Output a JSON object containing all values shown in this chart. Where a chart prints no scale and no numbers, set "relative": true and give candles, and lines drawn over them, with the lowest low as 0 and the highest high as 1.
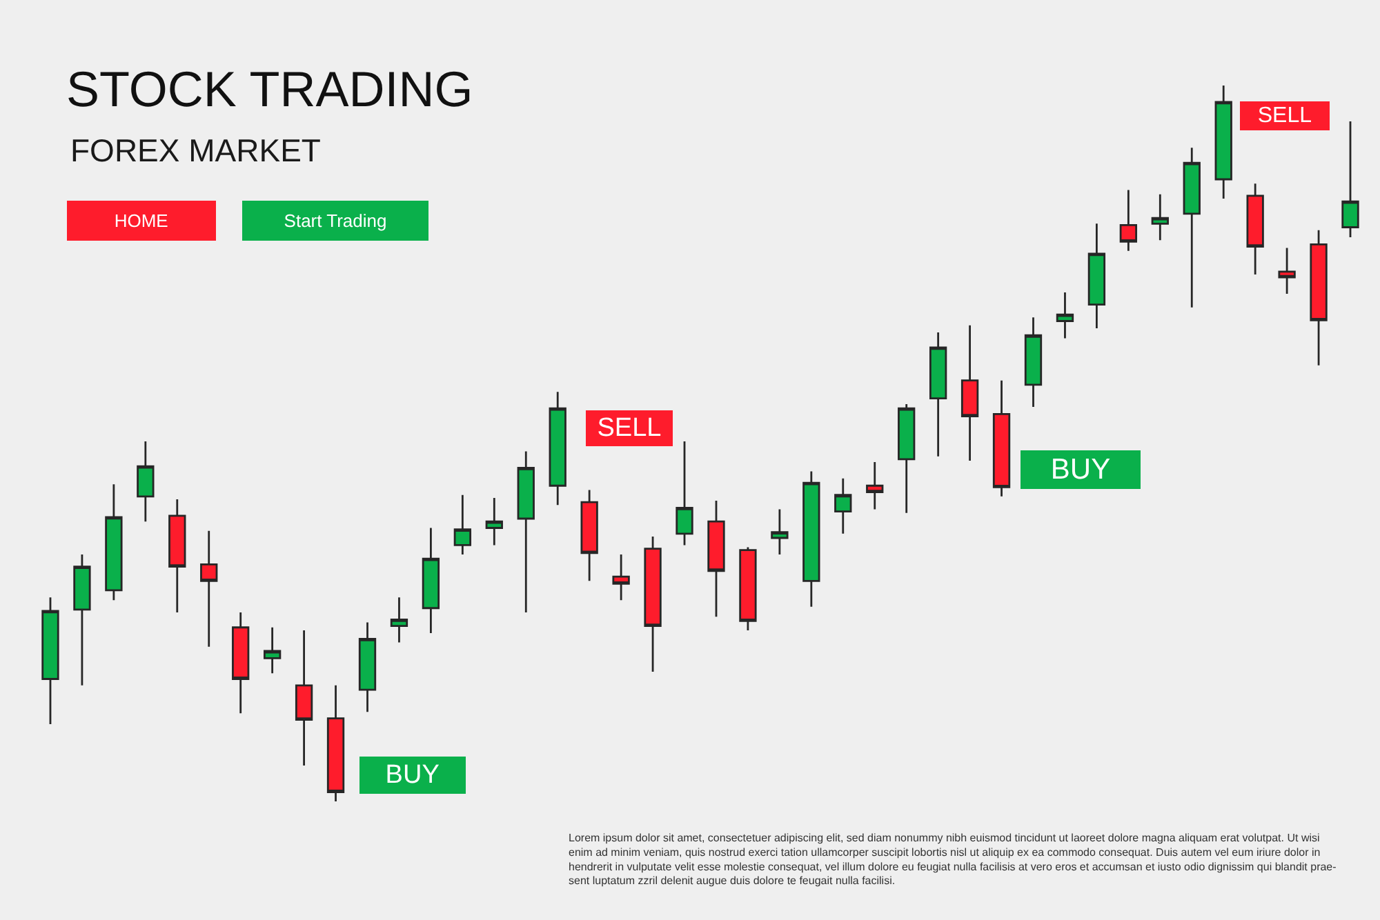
{
  "chart_data": {
    "type": "candlestick",
    "title": "STOCK TRADING",
    "subtitle": "FOREX MARKET",
    "relative": true,
    "categories": [
      null,
      null,
      null,
      null,
      null,
      null,
      null,
      null,
      null,
      null,
      null,
      null,
      null,
      null,
      null,
      null,
      null,
      null,
      null,
      null,
      null,
      null,
      null,
      null,
      null,
      null,
      null,
      null,
      null,
      null,
      null,
      null,
      null,
      null,
      null,
      null,
      null,
      null,
      null,
      null,
      null,
      null
    ],
    "ohlc": [
      [
        0.171,
        0.285,
        0.108,
        0.266
      ],
      [
        0.268,
        0.345,
        0.162,
        0.328
      ],
      [
        0.295,
        0.443,
        0.281,
        0.397
      ],
      [
        0.426,
        0.503,
        0.391,
        0.468
      ],
      [
        0.399,
        0.422,
        0.264,
        0.328
      ],
      [
        0.331,
        0.378,
        0.216,
        0.308
      ],
      [
        0.243,
        0.264,
        0.123,
        0.171
      ],
      [
        0.2,
        0.243,
        0.179,
        0.21
      ],
      [
        0.162,
        0.239,
        0.05,
        0.114
      ],
      [
        0.116,
        0.162,
        0.0,
        0.013
      ],
      [
        0.156,
        0.25,
        0.125,
        0.227
      ],
      [
        0.245,
        0.285,
        0.222,
        0.254
      ],
      [
        0.27,
        0.382,
        0.235,
        0.339
      ],
      [
        0.358,
        0.428,
        0.345,
        0.38
      ],
      [
        0.382,
        0.424,
        0.358,
        0.391
      ],
      [
        0.395,
        0.489,
        0.264,
        0.466
      ],
      [
        0.441,
        0.572,
        0.414,
        0.549
      ],
      [
        0.418,
        0.435,
        0.308,
        0.347
      ],
      [
        0.314,
        0.345,
        0.281,
        0.304
      ],
      [
        0.353,
        0.37,
        0.181,
        0.245
      ],
      [
        0.374,
        0.503,
        0.358,
        0.41
      ],
      [
        0.391,
        0.42,
        0.258,
        0.322
      ],
      [
        0.351,
        0.355,
        0.239,
        0.252
      ],
      [
        0.368,
        0.408,
        0.345,
        0.376
      ],
      [
        0.308,
        0.461,
        0.272,
        0.445
      ],
      [
        0.405,
        0.451,
        0.374,
        0.428
      ],
      [
        0.441,
        0.474,
        0.408,
        0.432
      ],
      [
        0.478,
        0.555,
        0.403,
        0.549
      ],
      [
        0.563,
        0.655,
        0.482,
        0.634
      ],
      [
        0.588,
        0.665,
        0.476,
        0.538
      ],
      [
        0.541,
        0.588,
        0.426,
        0.439
      ],
      [
        0.582,
        0.676,
        0.551,
        0.651
      ],
      [
        0.671,
        0.711,
        0.647,
        0.68
      ],
      [
        0.694,
        0.807,
        0.661,
        0.765
      ],
      [
        0.805,
        0.854,
        0.769,
        0.782
      ],
      [
        0.807,
        0.848,
        0.784,
        0.815
      ],
      [
        0.821,
        0.913,
        0.69,
        0.892
      ],
      [
        0.869,
        1.0,
        0.842,
        0.977
      ],
      [
        0.846,
        0.863,
        0.736,
        0.775
      ],
      [
        0.74,
        0.773,
        0.709,
        0.732
      ],
      [
        0.778,
        0.798,
        0.609,
        0.672
      ],
      [
        0.802,
        0.95,
        0.788,
        0.838
      ]
    ],
    "colors": [
      "#0ab04b",
      "#0ab04b",
      "#0ab04b",
      "#0ab04b",
      "#fe1c2c",
      "#fe1c2c",
      "#fe1c2c",
      "#0ab04b",
      "#fe1c2c",
      "#fe1c2c",
      "#0ab04b",
      "#0ab04b",
      "#0ab04b",
      "#0ab04b",
      "#0ab04b",
      "#0ab04b",
      "#0ab04b",
      "#fe1c2c",
      "#fe1c2c",
      "#fe1c2c",
      "#0ab04b",
      "#fe1c2c",
      "#fe1c2c",
      "#0ab04b",
      "#0ab04b",
      "#0ab04b",
      "#fe1c2c",
      "#0ab04b",
      "#0ab04b",
      "#fe1c2c",
      "#fe1c2c",
      "#0ab04b",
      "#0ab04b",
      "#0ab04b",
      "#fe1c2c",
      "#0ab04b",
      "#0ab04b",
      "#0ab04b",
      "#fe1c2c",
      "#fe1c2c",
      "#fe1c2c",
      "#0ab04b"
    ],
    "annotations": [
      "HOME",
      "Start Trading",
      "SELL",
      "BUY",
      "BUY",
      "SELL",
      "Lorem ipsum dolor sit amet, consectetuer adipiscing elit, sed diam nonummy nibh euismod tincidunt ut laoreet dolore magna aliquam erat volutpat. Ut wisi\nenim ad minim veniam, quis nostrud exerci tation ullamcorper suscipit lobortis nisl ut aliquip ex ea commodo consequat. Duis autem vel eum iriure dolor in\nhendrerit in vulputate velit esse molestie consequat, vel illum dolore eu feugiat nulla facilisis at vero eros et accumsan et iusto odio dignissim qui blandit prae-\nsent luptatum zzril delenit augue duis dolore te feugait nulla facilisi."
    ]
  }
}
